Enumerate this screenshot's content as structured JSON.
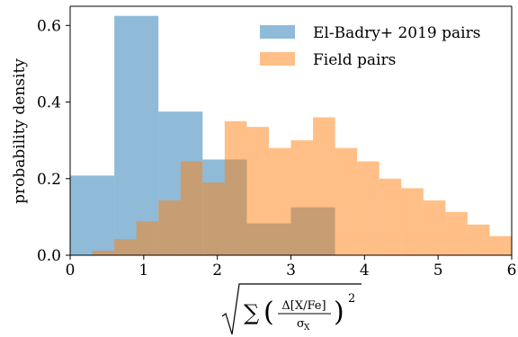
{
  "chart_data": {
    "type": "histogram",
    "ylabel": "probability density",
    "xlabel_parts": {
      "sum": "∑",
      "delta_numerator": "Δ[X/Fe]",
      "sigma_denominator": "σ",
      "sigma_subscript": "X",
      "exponent": "2"
    },
    "xlim": [
      0,
      6
    ],
    "ylim": [
      0,
      0.65
    ],
    "xticks": [
      "0",
      "1",
      "2",
      "3",
      "4",
      "5",
      "6"
    ],
    "xtick_values": [
      0,
      1,
      2,
      3,
      4,
      5,
      6
    ],
    "yticks": [
      "0.0",
      "0.2",
      "0.4",
      "0.6"
    ],
    "ytick_values": [
      0,
      0.2,
      0.4,
      0.6
    ],
    "legend_position": "top-right",
    "series": [
      {
        "name": "El-Badry+ 2019 pairs",
        "color": "#1f77b4",
        "alpha": 0.5,
        "bins": [
          {
            "x0": 0.0,
            "x1": 0.6,
            "y": 0.208
          },
          {
            "x0": 0.6,
            "x1": 1.2,
            "y": 0.625
          },
          {
            "x0": 1.2,
            "x1": 1.8,
            "y": 0.375
          },
          {
            "x0": 1.8,
            "x1": 2.4,
            "y": 0.25
          },
          {
            "x0": 2.4,
            "x1": 3.0,
            "y": 0.083
          },
          {
            "x0": 3.0,
            "x1": 3.6,
            "y": 0.125
          }
        ]
      },
      {
        "name": "Field pairs",
        "color": "#ff7f0e",
        "alpha": 0.5,
        "bins": [
          {
            "x0": 0.3,
            "x1": 0.6,
            "y": 0.012
          },
          {
            "x0": 0.6,
            "x1": 0.9,
            "y": 0.042
          },
          {
            "x0": 0.9,
            "x1": 1.2,
            "y": 0.088
          },
          {
            "x0": 1.2,
            "x1": 1.5,
            "y": 0.143
          },
          {
            "x0": 1.5,
            "x1": 1.8,
            "y": 0.245
          },
          {
            "x0": 1.8,
            "x1": 2.1,
            "y": 0.19
          },
          {
            "x0": 2.1,
            "x1": 2.4,
            "y": 0.35
          },
          {
            "x0": 2.4,
            "x1": 2.7,
            "y": 0.335
          },
          {
            "x0": 2.7,
            "x1": 3.0,
            "y": 0.28
          },
          {
            "x0": 3.0,
            "x1": 3.3,
            "y": 0.3
          },
          {
            "x0": 3.3,
            "x1": 3.6,
            "y": 0.36
          },
          {
            "x0": 3.6,
            "x1": 3.9,
            "y": 0.28
          },
          {
            "x0": 3.9,
            "x1": 4.2,
            "y": 0.245
          },
          {
            "x0": 4.2,
            "x1": 4.5,
            "y": 0.2
          },
          {
            "x0": 4.5,
            "x1": 4.8,
            "y": 0.175
          },
          {
            "x0": 4.8,
            "x1": 5.1,
            "y": 0.143
          },
          {
            "x0": 5.1,
            "x1": 5.4,
            "y": 0.113
          },
          {
            "x0": 5.4,
            "x1": 5.7,
            "y": 0.08
          },
          {
            "x0": 5.7,
            "x1": 6.0,
            "y": 0.05
          }
        ]
      }
    ]
  }
}
